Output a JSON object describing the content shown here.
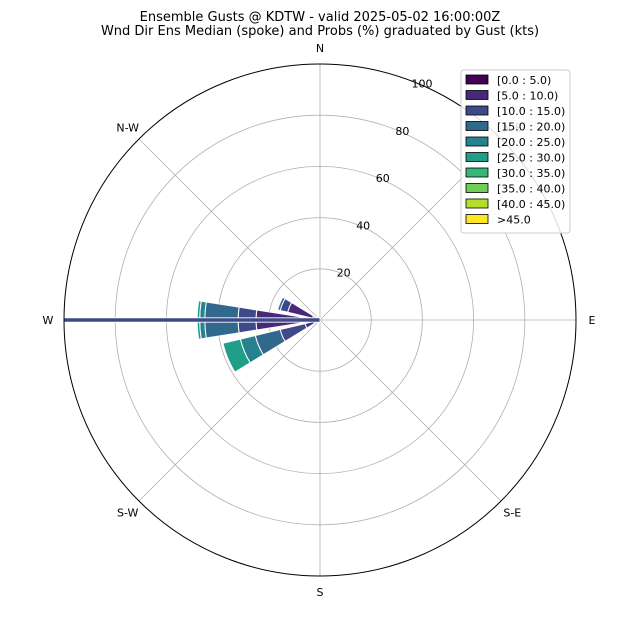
{
  "title_line1": "Ensemble Gusts @ KDTW - valid 2025-05-02 16:00:00Z",
  "title_line2": "Wnd Dir Ens Median (spoke) and Probs (%) graduated by Gust (kts)",
  "chart_data": {
    "type": "windrose",
    "rmax": 100,
    "radial_ticks": [
      20,
      40,
      60,
      80,
      100
    ],
    "direction_labels": [
      {
        "deg": 0,
        "text": "N"
      },
      {
        "deg": 45,
        "text": "N-E"
      },
      {
        "deg": 90,
        "text": "E"
      },
      {
        "deg": 135,
        "text": "S-E"
      },
      {
        "deg": 180,
        "text": "S"
      },
      {
        "deg": 225,
        "text": "S-W"
      },
      {
        "deg": 270,
        "text": "W"
      },
      {
        "deg": 315,
        "text": "N-W"
      }
    ],
    "bins": [
      {
        "label": "[0.0 : 5.0)",
        "color": "#440154"
      },
      {
        "label": "[5.0 : 10.0)",
        "color": "#482878"
      },
      {
        "label": "[10.0 : 15.0)",
        "color": "#3e4989"
      },
      {
        "label": "[15.0 : 20.0)",
        "color": "#31688e"
      },
      {
        "label": "[20.0 : 25.0)",
        "color": "#26828e"
      },
      {
        "label": "[25.0 : 30.0)",
        "color": "#1f9e89"
      },
      {
        "label": "[30.0 : 35.0)",
        "color": "#35b779"
      },
      {
        "label": "[35.0 : 40.0)",
        "color": "#6ece58"
      },
      {
        "label": "[40.0 : 45.0)",
        "color": "#b5de2b"
      },
      {
        "label": ">45.0",
        "color": "#fde725"
      }
    ],
    "sectors": [
      {
        "dir": 247.5,
        "values": [
          2,
          4,
          10,
          10,
          6,
          7,
          0,
          0,
          0,
          0
        ]
      },
      {
        "dir": 270,
        "values": [
          8,
          17,
          7,
          13,
          2,
          1,
          0,
          0,
          0,
          0
        ]
      },
      {
        "dir": 292.5,
        "values": [
          3,
          10,
          3,
          1,
          0,
          0,
          0,
          0,
          0,
          0
        ]
      },
      {
        "dir": 315,
        "values": [
          0,
          1,
          1,
          0,
          0,
          0,
          0,
          0,
          0,
          0
        ]
      },
      {
        "dir": 225,
        "values": [
          0,
          0,
          1,
          0,
          0,
          0,
          0,
          0,
          0,
          0
        ]
      }
    ],
    "spoke": {
      "dir": 270,
      "color": "#3e4989"
    }
  }
}
